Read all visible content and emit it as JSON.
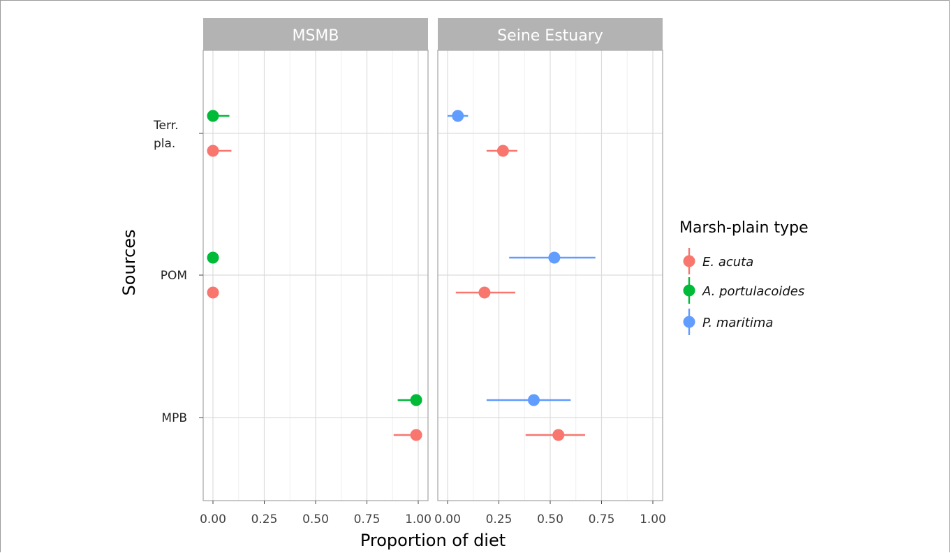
{
  "chart_data": {
    "type": "scatter",
    "subtype": "dot-and-whisker (faceted)",
    "xlabel": "Proportion of diet",
    "ylabel": "Sources",
    "xlim": [
      0,
      1
    ],
    "x_ticks": [
      "0.00",
      "0.25",
      "0.50",
      "0.75",
      "1.00"
    ],
    "categories": [
      {
        "key": "terr",
        "label": [
          "Terr.",
          "pla."
        ]
      },
      {
        "key": "pom",
        "label": [
          "POM"
        ]
      },
      {
        "key": "mpb",
        "label": [
          "MPB"
        ]
      }
    ],
    "facets": [
      "MSMB",
      "Seine Estuary"
    ],
    "legend": {
      "title": "Marsh-plain type",
      "position": "right"
    },
    "grid": true,
    "series": [
      {
        "name": "E. acuta",
        "color": "#F8766D",
        "points": [
          {
            "facet": "MSMB",
            "source": "terr",
            "value": 0.0,
            "low": 0.0,
            "high": 0.09
          },
          {
            "facet": "MSMB",
            "source": "pom",
            "value": 0.0,
            "low": 0.0,
            "high": 0.0
          },
          {
            "facet": "MSMB",
            "source": "mpb",
            "value": 0.99,
            "low": 0.88,
            "high": 1.0
          },
          {
            "facet": "Seine Estuary",
            "source": "terr",
            "value": 0.27,
            "low": 0.19,
            "high": 0.34
          },
          {
            "facet": "Seine Estuary",
            "source": "pom",
            "value": 0.18,
            "low": 0.04,
            "high": 0.33
          },
          {
            "facet": "Seine Estuary",
            "source": "mpb",
            "value": 0.54,
            "low": 0.38,
            "high": 0.67
          }
        ]
      },
      {
        "name": "A. portulacoides",
        "color": "#00BA38",
        "points": [
          {
            "facet": "MSMB",
            "source": "terr",
            "value": 0.0,
            "low": 0.0,
            "high": 0.08
          },
          {
            "facet": "MSMB",
            "source": "pom",
            "value": 0.0,
            "low": 0.0,
            "high": 0.0
          },
          {
            "facet": "MSMB",
            "source": "mpb",
            "value": 0.99,
            "low": 0.9,
            "high": 1.0
          }
        ]
      },
      {
        "name": "P. maritima",
        "color": "#619CFF",
        "points": [
          {
            "facet": "Seine Estuary",
            "source": "terr",
            "value": 0.05,
            "low": 0.0,
            "high": 0.1
          },
          {
            "facet": "Seine Estuary",
            "source": "pom",
            "value": 0.52,
            "low": 0.3,
            "high": 0.72
          },
          {
            "facet": "Seine Estuary",
            "source": "mpb",
            "value": 0.42,
            "low": 0.19,
            "high": 0.6
          }
        ]
      }
    ]
  }
}
